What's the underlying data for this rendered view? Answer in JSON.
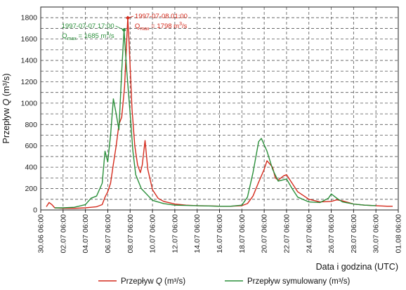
{
  "chart_data": {
    "type": "line",
    "ylabel_prefix": "Przepływ ",
    "ylabel_symbol": "Q",
    "ylabel_suffix": " (m³/s)",
    "xlabel": "Data i godzina (UTC)",
    "ylim": [
      0,
      1900
    ],
    "y_ticks": [
      0,
      200,
      400,
      600,
      800,
      1000,
      1200,
      1400,
      1600,
      1800
    ],
    "xlim": [
      "1997-06-30T06:00",
      "1997-08-01T06:00"
    ],
    "x_ticks": [
      {
        "date": "1997-06-30T06:00",
        "label": "30.06 06:00"
      },
      {
        "date": "1997-07-02T06:00",
        "label": "02.07 06:00"
      },
      {
        "date": "1997-07-04T06:00",
        "label": "04.07 06:00"
      },
      {
        "date": "1997-07-06T06:00",
        "label": "06.07 06:00"
      },
      {
        "date": "1997-07-08T06:00",
        "label": "08.07 06:00"
      },
      {
        "date": "1997-07-10T06:00",
        "label": "10.07 06:00"
      },
      {
        "date": "1997-07-12T06:00",
        "label": "12.07 06:00"
      },
      {
        "date": "1997-07-14T06:00",
        "label": "14.07 06:00"
      },
      {
        "date": "1997-07-16T06:00",
        "label": "16.07 06:00"
      },
      {
        "date": "1997-07-18T06:00",
        "label": "18.07 06:00"
      },
      {
        "date": "1997-07-20T06:00",
        "label": "20.07 06:00"
      },
      {
        "date": "1997-07-22T06:00",
        "label": "22.07 06:00"
      },
      {
        "date": "1997-07-24T06:00",
        "label": "24.07 06:00"
      },
      {
        "date": "1997-07-26T06:00",
        "label": "26.07 06:00"
      },
      {
        "date": "1997-07-28T06:00",
        "label": "28.07 06:00"
      },
      {
        "date": "1997-07-30T06:00",
        "label": "30.07 06:00"
      },
      {
        "date": "1997-08-01T06:00",
        "label": "01.08 06:00"
      }
    ],
    "grid": true,
    "legend_position": "bottom",
    "series": [
      {
        "name": "Przepływ Q (m³/s)",
        "legend_prefix": "Przepływ ",
        "legend_symbol": "Q",
        "legend_suffix": " (m³/s)",
        "color": "#d42a1c",
        "points": [
          [
            "1997-06-30T18:00",
            30
          ],
          [
            "1997-07-01T00:00",
            70
          ],
          [
            "1997-07-01T06:00",
            50
          ],
          [
            "1997-07-01T12:00",
            20
          ],
          [
            "1997-07-02T06:00",
            15
          ],
          [
            "1997-07-03T06:00",
            15
          ],
          [
            "1997-07-04T06:00",
            20
          ],
          [
            "1997-07-05T06:00",
            30
          ],
          [
            "1997-07-05T18:00",
            50
          ],
          [
            "1997-07-06T00:00",
            120
          ],
          [
            "1997-07-06T06:00",
            170
          ],
          [
            "1997-07-06T12:00",
            250
          ],
          [
            "1997-07-06T18:00",
            430
          ],
          [
            "1997-07-07T00:00",
            600
          ],
          [
            "1997-07-07T06:00",
            800
          ],
          [
            "1997-07-07T12:00",
            870
          ],
          [
            "1997-07-07T18:00",
            1150
          ],
          [
            "1997-07-08T01:00",
            1798
          ],
          [
            "1997-07-08T04:00",
            1550
          ],
          [
            "1997-07-08T10:00",
            950
          ],
          [
            "1997-07-08T16:00",
            600
          ],
          [
            "1997-07-08T22:00",
            420
          ],
          [
            "1997-07-09T04:00",
            350
          ],
          [
            "1997-07-09T08:00",
            420
          ],
          [
            "1997-07-09T14:00",
            650
          ],
          [
            "1997-07-09T20:00",
            380
          ],
          [
            "1997-07-10T06:00",
            190
          ],
          [
            "1997-07-10T18:00",
            110
          ],
          [
            "1997-07-11T06:00",
            80
          ],
          [
            "1997-07-12T06:00",
            55
          ],
          [
            "1997-07-13T06:00",
            45
          ],
          [
            "1997-07-14T06:00",
            40
          ],
          [
            "1997-07-15T06:00",
            38
          ],
          [
            "1997-07-16T06:00",
            35
          ],
          [
            "1997-07-17T06:00",
            35
          ],
          [
            "1997-07-18T06:00",
            40
          ],
          [
            "1997-07-18T18:00",
            60
          ],
          [
            "1997-07-19T06:00",
            130
          ],
          [
            "1997-07-19T18:00",
            260
          ],
          [
            "1997-07-20T06:00",
            380
          ],
          [
            "1997-07-20T12:00",
            460
          ],
          [
            "1997-07-21T00:00",
            400
          ],
          [
            "1997-07-21T06:00",
            300
          ],
          [
            "1997-07-21T12:00",
            280
          ],
          [
            "1997-07-22T00:00",
            320
          ],
          [
            "1997-07-22T06:00",
            330
          ],
          [
            "1997-07-22T18:00",
            250
          ],
          [
            "1997-07-23T06:00",
            170
          ],
          [
            "1997-07-24T06:00",
            100
          ],
          [
            "1997-07-25T06:00",
            75
          ],
          [
            "1997-07-26T06:00",
            80
          ],
          [
            "1997-07-26T18:00",
            95
          ],
          [
            "1997-07-27T06:00",
            85
          ],
          [
            "1997-07-28T06:00",
            55
          ],
          [
            "1997-07-29T06:00",
            45
          ],
          [
            "1997-07-30T06:00",
            40
          ],
          [
            "1997-07-31T06:00",
            35
          ],
          [
            "1997-07-31T18:00",
            35
          ]
        ]
      },
      {
        "name": "Przepływ symulowany (m³/s)",
        "legend_text": "Przepływ symulowany (m³/s)",
        "color": "#2a8f3a",
        "points": [
          [
            "1997-07-01T12:00",
            20
          ],
          [
            "1997-07-02T06:00",
            20
          ],
          [
            "1997-07-03T06:00",
            25
          ],
          [
            "1997-07-04T06:00",
            50
          ],
          [
            "1997-07-04T18:00",
            110
          ],
          [
            "1997-07-05T06:00",
            130
          ],
          [
            "1997-07-05T18:00",
            250
          ],
          [
            "1997-07-06T00:00",
            550
          ],
          [
            "1997-07-06T06:00",
            450
          ],
          [
            "1997-07-06T12:00",
            700
          ],
          [
            "1997-07-06T18:00",
            1040
          ],
          [
            "1997-07-07T00:00",
            900
          ],
          [
            "1997-07-07T06:00",
            750
          ],
          [
            "1997-07-07T12:00",
            1300
          ],
          [
            "1997-07-07T17:00",
            1685
          ],
          [
            "1997-07-07T22:00",
            1350
          ],
          [
            "1997-07-08T06:00",
            900
          ],
          [
            "1997-07-08T12:00",
            550
          ],
          [
            "1997-07-08T18:00",
            330
          ],
          [
            "1997-07-09T06:00",
            200
          ],
          [
            "1997-07-10T06:00",
            90
          ],
          [
            "1997-07-11T06:00",
            60
          ],
          [
            "1997-07-12T06:00",
            45
          ],
          [
            "1997-07-14T06:00",
            40
          ],
          [
            "1997-07-16T06:00",
            35
          ],
          [
            "1997-07-17T06:00",
            35
          ],
          [
            "1997-07-18T06:00",
            45
          ],
          [
            "1997-07-18T18:00",
            120
          ],
          [
            "1997-07-19T06:00",
            350
          ],
          [
            "1997-07-19T18:00",
            640
          ],
          [
            "1997-07-20T00:00",
            670
          ],
          [
            "1997-07-20T12:00",
            550
          ],
          [
            "1997-07-21T00:00",
            380
          ],
          [
            "1997-07-21T12:00",
            270
          ],
          [
            "1997-07-22T06:00",
            290
          ],
          [
            "1997-07-22T18:00",
            200
          ],
          [
            "1997-07-23T06:00",
            120
          ],
          [
            "1997-07-24T06:00",
            75
          ],
          [
            "1997-07-25T06:00",
            70
          ],
          [
            "1997-07-26T00:00",
            110
          ],
          [
            "1997-07-26T06:00",
            150
          ],
          [
            "1997-07-26T18:00",
            110
          ],
          [
            "1997-07-27T06:00",
            75
          ],
          [
            "1997-07-28T06:00",
            55
          ],
          [
            "1997-07-29T06:00",
            45
          ],
          [
            "1997-07-30T06:00",
            40
          ]
        ]
      }
    ],
    "annotations": [
      {
        "series_index": 0,
        "date": "1997-07-08T01:00",
        "value": 1798,
        "line1": "1997-07-08 01:00",
        "line2_prefix": "Q",
        "line2_sub": "max",
        "line2_mid": " = 1798 m",
        "line2_sup": "3",
        "line2_suffix": "/s",
        "color": "#d42a1c"
      },
      {
        "series_index": 1,
        "date": "1997-07-07T17:00",
        "value": 1685,
        "line1": "1997-07-07 17:00",
        "line2_prefix": "Q",
        "line2_sub": "max",
        "line2_mid": " = 1685 m",
        "line2_sup": "3",
        "line2_suffix": "/s",
        "color": "#2a8f3a"
      }
    ]
  }
}
